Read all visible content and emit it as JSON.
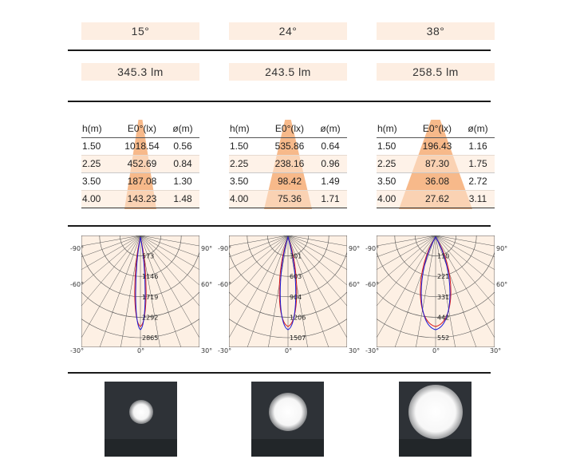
{
  "columns": [
    {
      "angle": "15°",
      "flux": "345.3 lm",
      "table": {
        "headers": [
          "h(m)",
          "E0°(lx)",
          "ø(m)"
        ],
        "rows": [
          [
            "1.50",
            "1018.54",
            "0.56"
          ],
          [
            "2.25",
            "452.69",
            "0.84"
          ],
          [
            "3.50",
            "187.08",
            "1.30"
          ],
          [
            "4.00",
            "143.23",
            "1.48"
          ]
        ]
      },
      "polar": {
        "angles_left": [
          "-90°",
          "-60°",
          "-30°"
        ],
        "angles_right": [
          "90°",
          "60°",
          "30°"
        ],
        "angle_bottom": "0°",
        "ring_values": [
          "573",
          "1146",
          "1719",
          "2292",
          "2865"
        ]
      }
    },
    {
      "angle": "24°",
      "flux": "243.5 lm",
      "table": {
        "headers": [
          "h(m)",
          "E0°(lx)",
          "ø(m)"
        ],
        "rows": [
          [
            "1.50",
            "535.86",
            "0.64"
          ],
          [
            "2.25",
            "238.16",
            "0.96"
          ],
          [
            "3.50",
            "98.42",
            "1.49"
          ],
          [
            "4.00",
            "75.36",
            "1.71"
          ]
        ]
      },
      "polar": {
        "angles_left": [
          "-90°",
          "-60°",
          "-30°"
        ],
        "angles_right": [
          "90°",
          "60°",
          "30°"
        ],
        "angle_bottom": "0°",
        "ring_values": [
          "301",
          "603",
          "904",
          "1206",
          "1507"
        ]
      }
    },
    {
      "angle": "38°",
      "flux": "258.5 lm",
      "table": {
        "headers": [
          "h(m)",
          "E0°(lx)",
          "ø(m)"
        ],
        "rows": [
          [
            "1.50",
            "196.43",
            "1.16"
          ],
          [
            "2.25",
            "87.30",
            "1.75"
          ],
          [
            "3.50",
            "36.08",
            "2.72"
          ],
          [
            "4.00",
            "27.62",
            "3.11"
          ]
        ]
      },
      "polar": {
        "angles_left": [
          "-90°",
          "-60°",
          "-30°"
        ],
        "angles_right": [
          "90°",
          "60°",
          "30°"
        ],
        "angle_bottom": "0°",
        "ring_values": [
          "110",
          "221",
          "331",
          "442",
          "552"
        ]
      }
    }
  ],
  "colors": {
    "pill_bg": "#fdeee2",
    "cone": "#f7b98a",
    "row_shade": "#fde8d6",
    "polar_fill": "#fdf0e4",
    "curve_c0": "#1a1ad8",
    "curve_c90": "#d81a1a"
  }
}
